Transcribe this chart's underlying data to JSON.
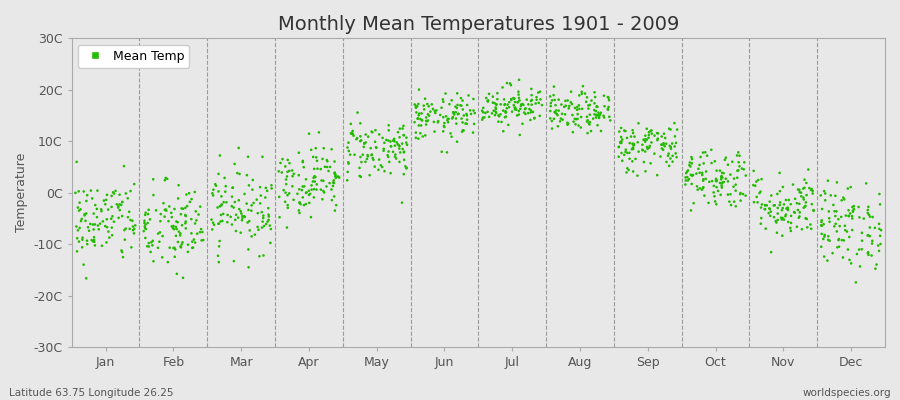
{
  "title": "Monthly Mean Temperatures 1901 - 2009",
  "ylabel": "Temperature",
  "xlabel_labels": [
    "Jan",
    "Feb",
    "Mar",
    "Apr",
    "May",
    "Jun",
    "Jul",
    "Aug",
    "Sep",
    "Oct",
    "Nov",
    "Dec"
  ],
  "ytick_labels": [
    "30C",
    "20C",
    "10C",
    "0C",
    "-10C",
    "-20C",
    "-30C"
  ],
  "ytick_values": [
    30,
    20,
    10,
    0,
    -10,
    -20,
    -30
  ],
  "ylim": [
    -30,
    30
  ],
  "dot_color": "#22bb00",
  "dot_size": 3.5,
  "background_color": "#e8e8e8",
  "plot_bg_color": "#e8e8e8",
  "grid_color": "#666666",
  "title_fontsize": 14,
  "axis_label_fontsize": 9,
  "tick_fontsize": 9,
  "legend_label": "Mean Temp",
  "subtitle_left": "Latitude 63.75 Longitude 26.25",
  "subtitle_right": "worldspecies.org",
  "monthly_means": [
    -5.5,
    -7.0,
    -3.0,
    2.5,
    8.5,
    14.5,
    17.0,
    15.5,
    9.0,
    3.0,
    -2.5,
    -6.5
  ],
  "monthly_stds": [
    4.2,
    4.5,
    4.2,
    3.5,
    3.0,
    2.3,
    2.0,
    2.0,
    2.5,
    3.0,
    3.2,
    4.2
  ],
  "n_years": 109,
  "seed": 42
}
